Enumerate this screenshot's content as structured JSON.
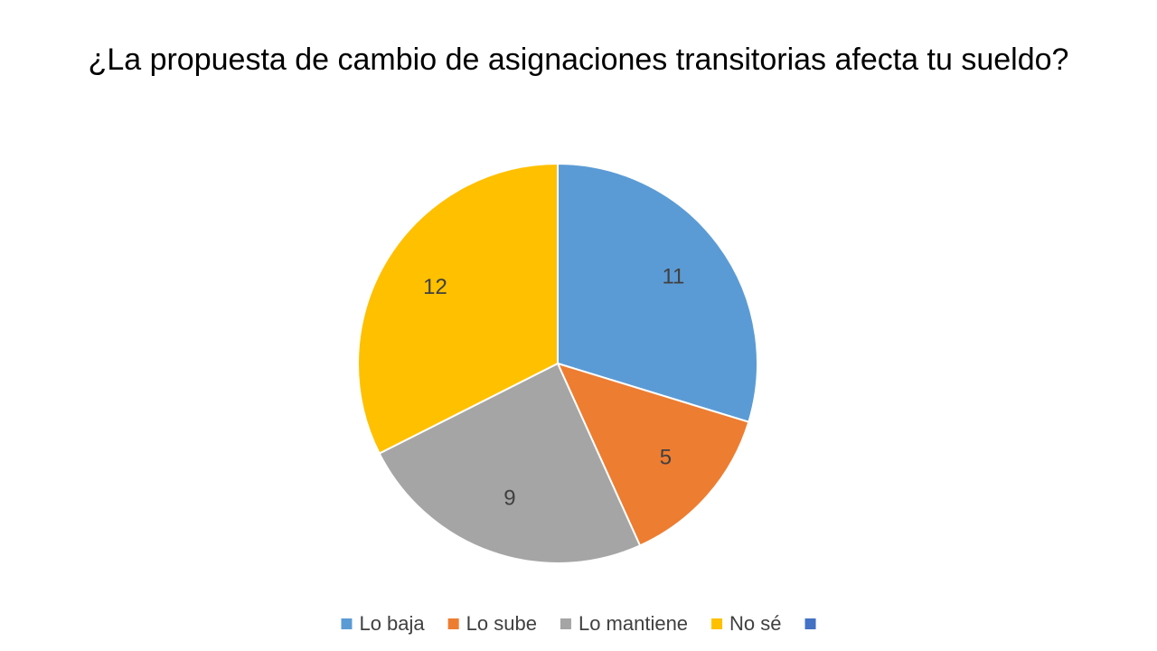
{
  "chart_data": {
    "type": "pie",
    "title": "¿La propuesta de cambio de asignaciones transitorias afecta tu sueldo?",
    "categories": [
      "Lo baja",
      "Lo sube",
      "Lo mantiene",
      "No sé",
      null
    ],
    "values": [
      11,
      5,
      9,
      12,
      null
    ],
    "colors": [
      "#5b9bd5",
      "#ed7d31",
      "#a5a5a5",
      "#ffc000",
      "#4472c4"
    ],
    "legend": "bottom"
  }
}
